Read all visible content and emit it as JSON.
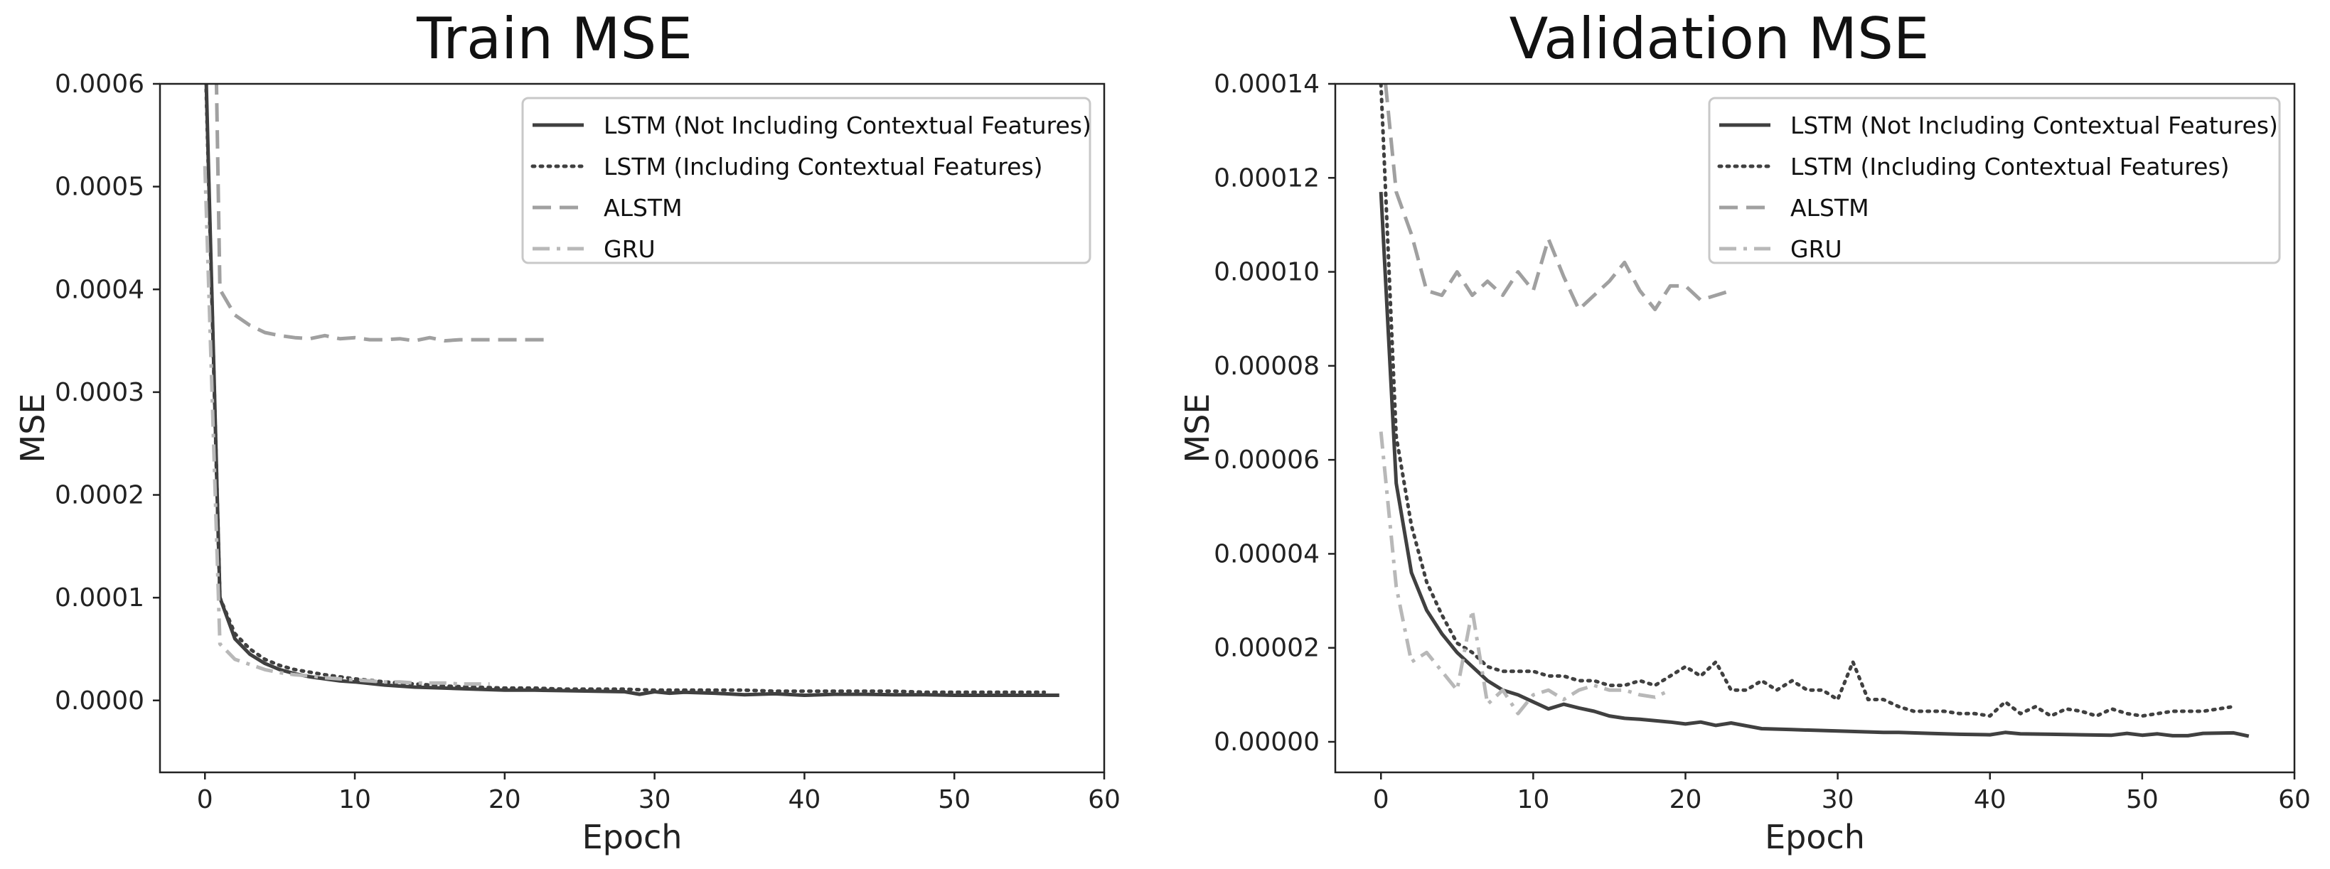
{
  "colors": {
    "lstm_no_ctx": "#404040",
    "lstm_ctx": "#404040",
    "alstm": "#a0a0a0",
    "gru": "#b8b8b8",
    "axes": "#222222",
    "legend_border": "#c8c8c8"
  },
  "chart_data": [
    {
      "type": "line",
      "title": "Train MSE",
      "xlabel": "Epoch",
      "ylabel": "MSE",
      "xlim": [
        -3,
        60
      ],
      "ylim": [
        -7e-05,
        0.0006
      ],
      "xticks": [
        0,
        10,
        20,
        30,
        40,
        50,
        60
      ],
      "xtick_labels": [
        "0",
        "10",
        "20",
        "30",
        "40",
        "50",
        "60"
      ],
      "yticks": [
        0.0,
        0.0001,
        0.0002,
        0.0003,
        0.0004,
        0.0005,
        0.0006
      ],
      "ytick_labels": [
        "0.0000",
        "0.0001",
        "0.0002",
        "0.0003",
        "0.0004",
        "0.0005",
        "0.0006"
      ],
      "legend_position": "top-right",
      "series": [
        {
          "name": "LSTM (Not Including Contextual Features)",
          "style": "solid",
          "x": [
            0,
            1,
            2,
            3,
            4,
            5,
            6,
            7,
            8,
            9,
            10,
            12,
            14,
            16,
            18,
            20,
            22,
            24,
            26,
            28,
            29,
            30,
            31,
            32,
            34,
            36,
            38,
            40,
            42,
            44,
            46,
            48,
            50,
            52,
            54,
            57
          ],
          "y": [
            0.00065,
            0.0001,
            6e-05,
            4.5e-05,
            3.6e-05,
            3e-05,
            2.6e-05,
            2.3e-05,
            2.1e-05,
            1.9e-05,
            1.8e-05,
            1.5e-05,
            1.3e-05,
            1.2e-05,
            1.1e-05,
            1e-05,
            1e-05,
            9.5e-06,
            9e-06,
            8.5e-06,
            6e-06,
            8.5e-06,
            7e-06,
            8e-06,
            7e-06,
            5.5e-06,
            6.5e-06,
            5e-06,
            6e-06,
            6e-06,
            5.5e-06,
            5.5e-06,
            5e-06,
            5e-06,
            5e-06,
            5e-06
          ]
        },
        {
          "name": "LSTM (Including Contextual Features)",
          "style": "dotted",
          "x": [
            0,
            1,
            2,
            3,
            4,
            5,
            6,
            8,
            10,
            12,
            14,
            16,
            18,
            20,
            22,
            24,
            26,
            28,
            30,
            32,
            34,
            36,
            38,
            40,
            42,
            44,
            46,
            48,
            50,
            52,
            54,
            56
          ],
          "y": [
            0.00064,
            0.0001,
            6.5e-05,
            5e-05,
            4e-05,
            3.4e-05,
            3e-05,
            2.5e-05,
            2.1e-05,
            1.8e-05,
            1.6e-05,
            1.4e-05,
            1.3e-05,
            1.2e-05,
            1.2e-05,
            1.1e-05,
            1.1e-05,
            1.1e-05,
            1e-05,
            1e-05,
            1e-05,
            1e-05,
            9e-06,
            9e-06,
            9e-06,
            9e-06,
            9e-06,
            8e-06,
            8e-06,
            8e-06,
            8e-06,
            8e-06
          ]
        },
        {
          "name": "ALSTM",
          "style": "dashed",
          "x": [
            0.7,
            1,
            2,
            3,
            4,
            5,
            6,
            7,
            8,
            9,
            10,
            11,
            12,
            13,
            14,
            15,
            16,
            17,
            18,
            19,
            20,
            21,
            22,
            23
          ],
          "y": [
            0.00066,
            0.0004,
            0.000375,
            0.000365,
            0.000358,
            0.000355,
            0.000353,
            0.000352,
            0.000355,
            0.000352,
            0.000353,
            0.000351,
            0.000351,
            0.000352,
            0.00035,
            0.000353,
            0.00035,
            0.000351,
            0.000351,
            0.000351,
            0.000351,
            0.000351,
            0.000351,
            0.000351
          ]
        },
        {
          "name": "GRU",
          "style": "dashdot",
          "x": [
            0,
            1,
            2,
            3,
            4,
            5,
            6,
            7,
            8,
            9,
            10,
            11,
            12,
            13,
            14,
            15,
            16,
            17,
            18,
            19
          ],
          "y": [
            0.00052,
            5.5e-05,
            4e-05,
            3.5e-05,
            3e-05,
            2.7e-05,
            2.5e-05,
            2.4e-05,
            2.2e-05,
            2.1e-05,
            2e-05,
            1.9e-05,
            1.8e-05,
            1.8e-05,
            1.7e-05,
            1.7e-05,
            1.7e-05,
            1.6e-05,
            1.6e-05,
            1.6e-05
          ]
        }
      ]
    },
    {
      "type": "line",
      "title": "Validation MSE",
      "xlabel": "Epoch",
      "ylabel": "MSE",
      "xlim": [
        -3,
        60
      ],
      "ylim": [
        -6.5e-06,
        0.00014
      ],
      "xticks": [
        0,
        10,
        20,
        30,
        40,
        50,
        60
      ],
      "xtick_labels": [
        "0",
        "10",
        "20",
        "30",
        "40",
        "50",
        "60"
      ],
      "yticks": [
        0.0,
        2e-05,
        4e-05,
        6e-05,
        8e-05,
        0.0001,
        0.00012,
        0.00014
      ],
      "ytick_labels": [
        "0.00000",
        "0.00002",
        "0.00004",
        "0.00006",
        "0.00008",
        "0.00010",
        "0.00012",
        "0.00014"
      ],
      "legend_position": "top-right",
      "series": [
        {
          "name": "LSTM (Not Including Contextual Features)",
          "style": "solid",
          "x": [
            0,
            1,
            2,
            3,
            4,
            5,
            6,
            7,
            8,
            9,
            10,
            11,
            12,
            13,
            14,
            15,
            16,
            17,
            18,
            19,
            20,
            21,
            22,
            23,
            25,
            27,
            30,
            33,
            34,
            36,
            38,
            40,
            41,
            42,
            44,
            46,
            48,
            49,
            50,
            51,
            52,
            53,
            54,
            56,
            57
          ],
          "y": [
            0.000117,
            5.5e-05,
            3.6e-05,
            2.8e-05,
            2.3e-05,
            1.9e-05,
            1.6e-05,
            1.3e-05,
            1.1e-05,
            1e-05,
            8.5e-06,
            7e-06,
            8e-06,
            7.2e-06,
            6.5e-06,
            5.5e-06,
            5e-06,
            4.8e-06,
            4.5e-06,
            4.2e-06,
            3.8e-06,
            4.2e-06,
            3.5e-06,
            4e-06,
            2.8e-06,
            2.6e-06,
            2.3e-06,
            2e-06,
            2e-06,
            1.8e-06,
            1.6e-06,
            1.5e-06,
            2e-06,
            1.7e-06,
            1.6e-06,
            1.5e-06,
            1.4e-06,
            1.8e-06,
            1.4e-06,
            1.7e-06,
            1.3e-06,
            1.3e-06,
            1.8e-06,
            1.9e-06,
            1.2e-06
          ]
        },
        {
          "name": "LSTM (Including Contextual Features)",
          "style": "dotted",
          "x": [
            0,
            1,
            2,
            3,
            4,
            5,
            6,
            7,
            8,
            9,
            10,
            11,
            12,
            13,
            14,
            15,
            16,
            17,
            18,
            19,
            20,
            21,
            22,
            23,
            24,
            25,
            26,
            27,
            28,
            29,
            30,
            31,
            32,
            33,
            34,
            35,
            36,
            37,
            38,
            39,
            40,
            41,
            42,
            43,
            44,
            45,
            46,
            47,
            48,
            49,
            50,
            51,
            52,
            53,
            54,
            55,
            56
          ],
          "y": [
            0.00014,
            6.5e-05,
            4.6e-05,
            3.4e-05,
            2.7e-05,
            2.1e-05,
            1.9e-05,
            1.6e-05,
            1.5e-05,
            1.5e-05,
            1.5e-05,
            1.4e-05,
            1.4e-05,
            1.3e-05,
            1.3e-05,
            1.2e-05,
            1.2e-05,
            1.3e-05,
            1.2e-05,
            1.4e-05,
            1.6e-05,
            1.4e-05,
            1.7e-05,
            1.1e-05,
            1.1e-05,
            1.3e-05,
            1.1e-05,
            1.3e-05,
            1.1e-05,
            1.1e-05,
            9e-06,
            1.7e-05,
            9e-06,
            9e-06,
            7.5e-06,
            6.5e-06,
            6.5e-06,
            6.5e-06,
            6e-06,
            6e-06,
            5.5e-06,
            8.5e-06,
            6e-06,
            7.5e-06,
            5.5e-06,
            7e-06,
            6.5e-06,
            5.5e-06,
            7e-06,
            6e-06,
            5.5e-06,
            6e-06,
            6.5e-06,
            6.5e-06,
            6.5e-06,
            7e-06,
            7.5e-06
          ]
        },
        {
          "name": "ALSTM",
          "style": "dashed",
          "x": [
            0.3,
            1,
            2,
            3,
            4,
            5,
            6,
            7,
            8,
            9,
            10,
            11,
            12,
            13,
            14,
            15,
            16,
            17,
            18,
            19,
            20,
            21,
            22,
            23
          ],
          "y": [
            0.00014,
            0.000117,
            0.000108,
            9.6e-05,
            9.5e-05,
            0.0001,
            9.5e-05,
            9.8e-05,
            9.5e-05,
            0.0001,
            9.6e-05,
            0.000107,
            9.9e-05,
            9.2e-05,
            9.5e-05,
            9.8e-05,
            0.000102,
            9.6e-05,
            9.2e-05,
            9.7e-05,
            9.7e-05,
            9.4e-05,
            9.5e-05,
            9.6e-05
          ]
        },
        {
          "name": "GRU",
          "style": "dashdot",
          "x": [
            0,
            1,
            2,
            3,
            4,
            5,
            6,
            7,
            8,
            9,
            10,
            11,
            12,
            13,
            14,
            15,
            16,
            17,
            18,
            19
          ],
          "y": [
            6.6e-05,
            3.3e-05,
            1.7e-05,
            1.9e-05,
            1.5e-05,
            1.1e-05,
            2.8e-05,
            8e-06,
            1.1e-05,
            6e-06,
            1e-05,
            1.1e-05,
            9e-06,
            1.1e-05,
            1.2e-05,
            1.1e-05,
            1.1e-05,
            1e-05,
            9.5e-06,
            1.1e-05
          ]
        }
      ]
    }
  ]
}
